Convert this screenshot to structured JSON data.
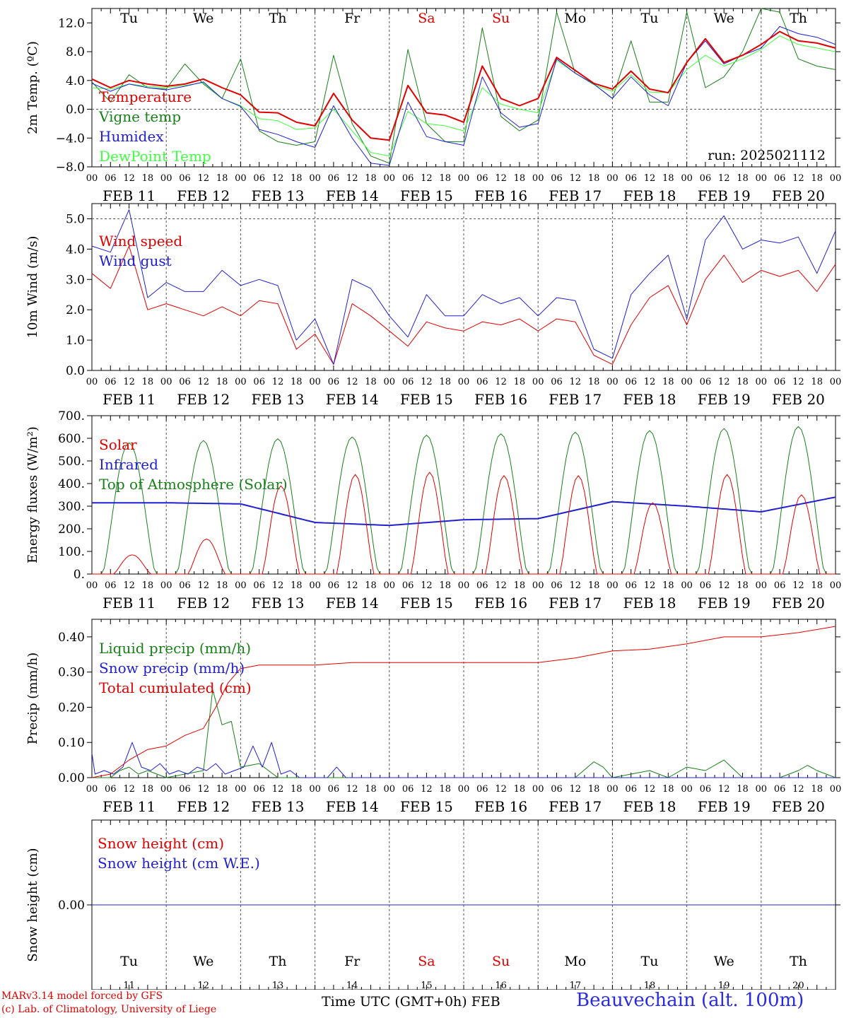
{
  "meta": {
    "model": "MARv3.14 model forced by GFS",
    "credit": "(c) Lab. of Climatology, University of Liege",
    "time_axis_label": "Time UTC (GMT+0h)",
    "month_label": "FEB",
    "station": "Beauvechain (alt. 100m)",
    "run_label": "run: 2025021112"
  },
  "days": {
    "weekday_labels": [
      "Tu",
      "We",
      "Th",
      "Fr",
      "Sa",
      "Su",
      "Mo",
      "Tu",
      "We",
      "Th"
    ],
    "weekend_flags": [
      false,
      false,
      false,
      false,
      true,
      true,
      false,
      false,
      false,
      false
    ],
    "weekday_color": "#000000",
    "weekend_color": "#e00000",
    "date_labels": [
      "FEB 11",
      "FEB 12",
      "FEB 13",
      "FEB 14",
      "FEB 15",
      "FEB 16",
      "FEB 17",
      "FEB 18",
      "FEB 19",
      "FEB 20"
    ],
    "day_numbers": [
      "11",
      "12",
      "13",
      "14",
      "15",
      "16",
      "17",
      "18",
      "19",
      "20"
    ],
    "hour_ticks": [
      "00",
      "06",
      "12",
      "18"
    ],
    "final_hour": "00"
  },
  "chart_data": [
    {
      "type": "line",
      "id": "temperature",
      "ylabel": "2m Temp. (ºC)",
      "ylim": [
        -8,
        14
      ],
      "yticks": [
        -8,
        -4,
        0,
        4,
        8,
        12
      ],
      "ytick_labels": [
        "−8.0",
        "−4.0",
        "0.0",
        "4.0",
        "8.0",
        "12.0"
      ],
      "ref_lines": [
        0
      ],
      "x_unit": "hours since FEB 11 00 UTC",
      "series": [
        {
          "name": "Temperature",
          "color": "#e00000",
          "width": 2,
          "x": [
            0,
            6,
            12,
            18,
            24,
            30,
            36,
            42,
            48,
            54,
            60,
            66,
            72,
            78,
            84,
            90,
            96,
            102,
            108,
            114,
            120,
            126,
            132,
            138,
            144,
            150,
            156,
            162,
            168,
            174,
            180,
            186,
            192,
            198,
            204,
            210,
            216,
            222,
            228,
            234,
            240
          ],
          "y": [
            4.2,
            3,
            4,
            3.5,
            3.2,
            3.5,
            4.2,
            3,
            2,
            -0.4,
            -0.5,
            -1.8,
            -2.3,
            2.2,
            -1.5,
            -4,
            -4.3,
            3.3,
            -0.5,
            -0.8,
            -1.8,
            6,
            1.5,
            0.5,
            1.5,
            7.2,
            5.4,
            3.6,
            2.8,
            5.3,
            2.8,
            2.3,
            6.5,
            9.8,
            6.5,
            7.5,
            9,
            10.8,
            9.5,
            9.2,
            8.5
          ]
        },
        {
          "name": "Vigne temp",
          "color": "#188018",
          "width": 1,
          "x": [
            0,
            6,
            12,
            18,
            24,
            30,
            36,
            42,
            48,
            54,
            60,
            66,
            72,
            78,
            84,
            90,
            96,
            102,
            108,
            114,
            120,
            126,
            132,
            138,
            144,
            150,
            156,
            162,
            168,
            174,
            180,
            186,
            192,
            198,
            204,
            210,
            216,
            222,
            228,
            234,
            240
          ],
          "y": [
            3.8,
            1,
            4.8,
            3,
            2.8,
            6.3,
            3.5,
            1.5,
            7,
            -3,
            -4.5,
            -5,
            -4.5,
            7.5,
            -2,
            -6.5,
            -7.5,
            8.3,
            -2,
            -4.5,
            -4.5,
            11.3,
            -1,
            -3,
            -1.5,
            13.5,
            5,
            3.5,
            1.5,
            9.5,
            1,
            1,
            13.5,
            3,
            4.5,
            8,
            14,
            13.5,
            7,
            6,
            5.5
          ]
        },
        {
          "name": "Humidex",
          "color": "#2020d0",
          "width": 1,
          "x": [
            0,
            6,
            12,
            18,
            24,
            30,
            36,
            42,
            48,
            54,
            60,
            66,
            72,
            78,
            84,
            90,
            96,
            102,
            108,
            114,
            120,
            126,
            132,
            138,
            144,
            150,
            156,
            162,
            168,
            174,
            180,
            186,
            192,
            198,
            204,
            210,
            216,
            222,
            228,
            234,
            240
          ],
          "y": [
            3.6,
            2.5,
            3.5,
            3,
            2.7,
            3.2,
            3.8,
            1.5,
            0.4,
            -2.8,
            -3.5,
            -4.5,
            -5.3,
            0.5,
            -4,
            -7.5,
            -7.8,
            1,
            -3.8,
            -4.5,
            -5,
            4.5,
            -0.5,
            -2.5,
            -2,
            7,
            5,
            3.5,
            1.5,
            4.5,
            2,
            0.5,
            6.5,
            9.5,
            6.3,
            7.5,
            8.5,
            11.5,
            10.5,
            10,
            9
          ]
        },
        {
          "name": "DewPoint Temp",
          "color": "#40ff40",
          "width": 1,
          "x": [
            0,
            6,
            12,
            18,
            24,
            30,
            36,
            42,
            48,
            54,
            60,
            66,
            72,
            78,
            84,
            90,
            96,
            102,
            108,
            114,
            120,
            126,
            132,
            138,
            144,
            150,
            156,
            162,
            168,
            174,
            180,
            186,
            192,
            198,
            204,
            210,
            216,
            222,
            228,
            234,
            240
          ],
          "y": [
            3,
            2.8,
            3.5,
            3.2,
            3,
            3.3,
            3.7,
            1.5,
            0.5,
            -1.3,
            -1.6,
            -2.8,
            -2.6,
            0,
            -3,
            -6,
            -6.5,
            -0.3,
            -2,
            -2.3,
            -3,
            3,
            0.7,
            0,
            -0.5,
            6.8,
            5,
            3.4,
            2.5,
            4.8,
            2.4,
            2.3,
            5.5,
            7.5,
            6,
            7,
            8.3,
            10.2,
            9,
            8.5,
            8
          ]
        }
      ],
      "annotation": "run: 2025021112"
    },
    {
      "type": "line",
      "id": "wind",
      "ylabel": "10m Wind (m/s)",
      "ylim": [
        0,
        5.5
      ],
      "yticks": [
        0,
        1,
        2,
        3,
        4,
        5
      ],
      "ytick_labels": [
        "0.0",
        "1.0",
        "2.0",
        "3.0",
        "4.0",
        "5.0"
      ],
      "ref_lines": [
        5
      ],
      "series": [
        {
          "name": "Wind speed",
          "color": "#e00000",
          "width": 1,
          "x": [
            0,
            6,
            12,
            18,
            24,
            30,
            36,
            42,
            48,
            54,
            60,
            66,
            72,
            78,
            84,
            90,
            96,
            102,
            108,
            114,
            120,
            126,
            132,
            138,
            144,
            150,
            156,
            162,
            168,
            174,
            180,
            186,
            192,
            198,
            204,
            210,
            216,
            222,
            228,
            234,
            240
          ],
          "y": [
            3.2,
            2.7,
            4.1,
            2,
            2.2,
            2,
            1.8,
            2.1,
            1.8,
            2.3,
            2.2,
            0.7,
            1.2,
            0.2,
            2.2,
            1.8,
            1.3,
            0.8,
            1.6,
            1.4,
            1.3,
            1.6,
            1.5,
            1.7,
            1.3,
            1.7,
            1.6,
            0.5,
            0.2,
            1.5,
            2.4,
            2.8,
            1.5,
            3,
            3.8,
            2.9,
            3.3,
            3.1,
            3.3,
            2.6,
            3.5
          ]
        },
        {
          "name": "Wind gust",
          "color": "#2020d0",
          "width": 1,
          "x": [
            0,
            6,
            12,
            18,
            24,
            30,
            36,
            42,
            48,
            54,
            60,
            66,
            72,
            78,
            84,
            90,
            96,
            102,
            108,
            114,
            120,
            126,
            132,
            138,
            144,
            150,
            156,
            162,
            168,
            174,
            180,
            186,
            192,
            198,
            204,
            210,
            216,
            222,
            228,
            234,
            240
          ],
          "y": [
            4.1,
            3.9,
            5.3,
            2.4,
            2.9,
            2.6,
            2.6,
            3.3,
            2.8,
            3,
            2.8,
            1,
            1.7,
            0.2,
            3,
            2.7,
            1.8,
            1.1,
            2.5,
            1.8,
            1.8,
            2.5,
            2.2,
            2.4,
            1.8,
            2.4,
            2.3,
            0.7,
            0.4,
            2.5,
            3.2,
            3.8,
            1.7,
            4.3,
            5.1,
            4,
            4.3,
            4.2,
            4.4,
            3.2,
            4.6
          ]
        }
      ]
    },
    {
      "type": "line",
      "id": "energy",
      "ylabel": "Energy fluxes (W/m²)",
      "ylim": [
        0,
        700
      ],
      "yticks": [
        0,
        100,
        200,
        300,
        400,
        500,
        600,
        700
      ],
      "ytick_labels": [
        "0.",
        "100.",
        "200.",
        "300.",
        "400.",
        "500.",
        "600.",
        "700."
      ],
      "ref_lines": [],
      "solar_peaks": [
        85,
        155,
        390,
        440,
        450,
        435,
        435,
        315,
        440,
        350
      ],
      "toa_peaks": [
        580,
        590,
        598,
        606,
        614,
        620,
        627,
        634,
        643,
        652
      ],
      "infrared_daily": [
        315,
        315,
        310,
        228,
        215,
        240,
        245,
        320,
        300,
        275,
        340
      ],
      "series": [
        {
          "name": "Solar",
          "color": "#e00000",
          "width": 1
        },
        {
          "name": "Infrared",
          "color": "#2020d0",
          "width": 2
        },
        {
          "name": "Top of Atmosphere (Solar)",
          "color": "#188018",
          "width": 1
        }
      ]
    },
    {
      "type": "line",
      "id": "precip",
      "ylabel": "Precip (mm/h)",
      "ylim": [
        0,
        0.45
      ],
      "yticks": [
        0,
        0.1,
        0.2,
        0.3,
        0.4
      ],
      "ytick_labels": [
        "0.00",
        "0.10",
        "0.20",
        "0.30",
        "0.40"
      ],
      "ref_lines": [],
      "series": [
        {
          "name": "Liquid precip (mm/h)",
          "color": "#188018",
          "width": 1,
          "x": [
            0,
            6,
            9,
            12,
            15,
            18,
            24,
            30,
            36,
            39,
            42,
            45,
            48,
            54,
            60,
            66,
            72,
            78,
            84,
            96,
            120,
            144,
            156,
            162,
            165,
            168,
            174,
            180,
            186,
            192,
            198,
            204,
            210,
            216,
            222,
            228,
            231,
            234,
            240
          ],
          "y": [
            0,
            0,
            0.02,
            0.03,
            0.01,
            0.02,
            0,
            0.01,
            0.02,
            0.25,
            0.15,
            0.16,
            0.03,
            0.04,
            0,
            0,
            0,
            0,
            0,
            0,
            0,
            0,
            0,
            0.045,
            0.03,
            0,
            0.01,
            0.02,
            0,
            0.03,
            0.02,
            0.05,
            0,
            0,
            0,
            0.02,
            0.035,
            0.02,
            0
          ]
        },
        {
          "name": "Snow precip (mm/h)",
          "color": "#2020d0",
          "width": 1,
          "x": [
            0,
            1,
            4,
            7,
            10,
            13,
            16,
            19,
            22,
            25,
            28,
            31,
            34,
            37,
            40,
            43,
            46,
            49,
            52,
            55,
            58,
            61,
            64,
            67,
            70,
            73,
            76,
            79,
            82,
            85,
            240
          ],
          "y": [
            0.07,
            0.01,
            0.02,
            0.01,
            0.03,
            0.1,
            0.03,
            0.02,
            0.04,
            0.01,
            0.02,
            0.01,
            0.03,
            0.02,
            0.04,
            0.01,
            0.02,
            0.03,
            0.09,
            0.03,
            0.1,
            0.01,
            0.02,
            0,
            0,
            0,
            0,
            0.03,
            0,
            0,
            0
          ]
        },
        {
          "name": "Total cumulated (cm)",
          "color": "#e00000",
          "width": 1,
          "x": [
            0,
            6,
            12,
            18,
            24,
            30,
            36,
            40,
            44,
            48,
            54,
            60,
            72,
            84,
            96,
            120,
            144,
            156,
            168,
            180,
            192,
            204,
            216,
            228,
            240
          ],
          "y": [
            0,
            0.01,
            0.05,
            0.08,
            0.09,
            0.12,
            0.14,
            0.2,
            0.27,
            0.31,
            0.32,
            0.32,
            0.32,
            0.327,
            0.327,
            0.327,
            0.327,
            0.34,
            0.36,
            0.365,
            0.38,
            0.4,
            0.4,
            0.412,
            0.43
          ]
        }
      ]
    },
    {
      "type": "line",
      "id": "snow",
      "ylabel": "Snow height (cm)",
      "ylim": [
        -1,
        1
      ],
      "yticks": [
        0
      ],
      "ytick_labels": [
        "0.00"
      ],
      "ref_lines": [],
      "series": [
        {
          "name": "Snow height (cm)",
          "color": "#e00000",
          "width": 1,
          "x": [
            0,
            240
          ],
          "y": [
            0,
            0
          ]
        },
        {
          "name": "Snow height (cm W.E.)",
          "color": "#2020d0",
          "width": 1,
          "x": [
            0,
            240
          ],
          "y": [
            0,
            0
          ]
        }
      ]
    }
  ]
}
